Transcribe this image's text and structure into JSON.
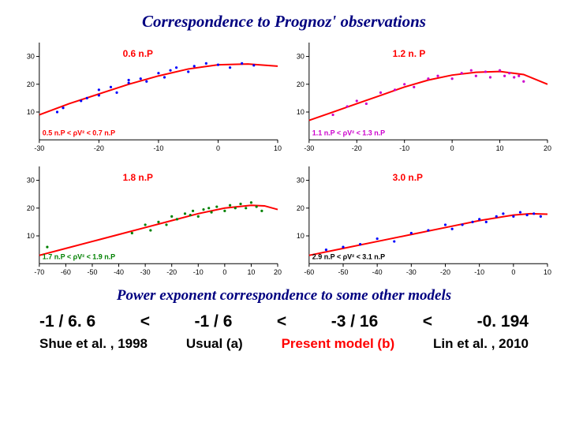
{
  "title": "Correspondence to Prognoz' observations",
  "subtitle": "Power exponent correspondence to some other models",
  "text_color": "#000080",
  "colors": {
    "curve": "#ff0000",
    "axis": "#000000",
    "tick_label": "#000000",
    "grid_bg": "#ffffff",
    "red_label": "#ff0000",
    "panelA_pts": "#0000ff",
    "panelB_pts": "#cc00cc",
    "panelC_pts": "#008000",
    "panelD_pts": "#0000ff"
  },
  "panels": [
    {
      "id": "A",
      "label_main": "0.6 n.P",
      "label_range": "0.5 n.P < ρV² < 0.7 n.P",
      "range_color": "#ff0000",
      "xlim": [
        -30,
        10
      ],
      "ylim": [
        0,
        35
      ],
      "xticks": [
        -30,
        -20,
        -10,
        0,
        10
      ],
      "yticks": [
        10,
        20,
        30
      ],
      "curve": [
        [
          -30,
          9
        ],
        [
          -25,
          13
        ],
        [
          -20,
          16.5
        ],
        [
          -15,
          20
        ],
        [
          -10,
          23
        ],
        [
          -5,
          25.5
        ],
        [
          0,
          27
        ],
        [
          5,
          27.3
        ],
        [
          10,
          26.5
        ]
      ],
      "points": [
        [
          -27,
          10
        ],
        [
          -26,
          11.5
        ],
        [
          -23,
          14
        ],
        [
          -22,
          15
        ],
        [
          -20,
          16
        ],
        [
          -20,
          18
        ],
        [
          -18,
          19
        ],
        [
          -17,
          17
        ],
        [
          -15,
          20.5
        ],
        [
          -15,
          21.5
        ],
        [
          -13,
          22
        ],
        [
          -12,
          21
        ],
        [
          -10,
          24
        ],
        [
          -9,
          22.5
        ],
        [
          -8,
          25
        ],
        [
          -7,
          26
        ],
        [
          -5,
          24.5
        ],
        [
          -4,
          26.5
        ],
        [
          -2,
          27.5
        ],
        [
          0,
          27
        ],
        [
          2,
          26
        ],
        [
          4,
          27.5
        ],
        [
          6,
          26.8
        ]
      ]
    },
    {
      "id": "B",
      "label_main": "1.2 n. P",
      "label_range": "1.1 n.P < ρV² < 1.3 n.P",
      "range_color": "#cc00cc",
      "xlim": [
        -30,
        20
      ],
      "ylim": [
        0,
        35
      ],
      "xticks": [
        -30,
        -20,
        -10,
        0,
        10,
        20
      ],
      "yticks": [
        10,
        20,
        30
      ],
      "curve": [
        [
          -30,
          7
        ],
        [
          -25,
          10
        ],
        [
          -20,
          13
        ],
        [
          -15,
          16
        ],
        [
          -10,
          19
        ],
        [
          -5,
          21.5
        ],
        [
          0,
          23.3
        ],
        [
          5,
          24.3
        ],
        [
          10,
          24.6
        ],
        [
          15,
          23.5
        ],
        [
          20,
          20
        ]
      ],
      "points": [
        [
          -25,
          9
        ],
        [
          -22,
          12
        ],
        [
          -20,
          14
        ],
        [
          -18,
          13
        ],
        [
          -15,
          17
        ],
        [
          -12,
          18
        ],
        [
          -10,
          20
        ],
        [
          -8,
          19
        ],
        [
          -5,
          22
        ],
        [
          -3,
          23
        ],
        [
          0,
          22
        ],
        [
          2,
          24
        ],
        [
          4,
          25
        ],
        [
          5,
          23
        ],
        [
          7,
          24.5
        ],
        [
          8,
          22.5
        ],
        [
          10,
          25
        ],
        [
          11,
          23
        ],
        [
          12,
          24
        ],
        [
          13,
          22.5
        ],
        [
          14,
          23
        ],
        [
          15,
          21
        ]
      ]
    },
    {
      "id": "C",
      "label_main": "1.8 n.P",
      "label_range": "1.7 n.P < ρV² < 1.9 n.P",
      "range_color": "#008000",
      "xlim": [
        -70,
        20
      ],
      "ylim": [
        0,
        35
      ],
      "xticks": [
        -70,
        -60,
        -50,
        -40,
        -30,
        -20,
        -10,
        0,
        10,
        20
      ],
      "yticks": [
        10,
        20,
        30
      ],
      "curve": [
        [
          -70,
          3
        ],
        [
          -60,
          5.5
        ],
        [
          -50,
          8
        ],
        [
          -40,
          10.5
        ],
        [
          -30,
          13
        ],
        [
          -20,
          15.5
        ],
        [
          -10,
          18
        ],
        [
          0,
          20
        ],
        [
          10,
          21
        ],
        [
          15,
          20.8
        ],
        [
          20,
          19.5
        ]
      ],
      "points": [
        [
          -67,
          6
        ],
        [
          -35,
          11
        ],
        [
          -30,
          14
        ],
        [
          -28,
          12
        ],
        [
          -25,
          15
        ],
        [
          -22,
          14
        ],
        [
          -20,
          17
        ],
        [
          -18,
          16
        ],
        [
          -15,
          18
        ],
        [
          -13,
          17.5
        ],
        [
          -12,
          19
        ],
        [
          -10,
          17
        ],
        [
          -8,
          19.5
        ],
        [
          -6,
          20
        ],
        [
          -5,
          18.5
        ],
        [
          -3,
          20.5
        ],
        [
          0,
          19
        ],
        [
          2,
          21
        ],
        [
          4,
          20
        ],
        [
          6,
          21.5
        ],
        [
          8,
          20
        ],
        [
          10,
          22
        ],
        [
          12,
          20.5
        ],
        [
          14,
          19
        ]
      ]
    },
    {
      "id": "D",
      "label_main": "3.0 n.P",
      "label_range": "2.9 n.P < ρV² < 3.1 n.P",
      "range_color": "#000000",
      "xlim": [
        -60,
        10
      ],
      "ylim": [
        0,
        35
      ],
      "xticks": [
        -60,
        -50,
        -40,
        -30,
        -20,
        -10,
        0,
        10
      ],
      "yticks": [
        10,
        20,
        30
      ],
      "curve": [
        [
          -60,
          3
        ],
        [
          -50,
          5.5
        ],
        [
          -40,
          8
        ],
        [
          -30,
          10.5
        ],
        [
          -20,
          13
        ],
        [
          -10,
          15.5
        ],
        [
          0,
          17.5
        ],
        [
          5,
          18
        ],
        [
          10,
          17.8
        ]
      ],
      "points": [
        [
          -55,
          5
        ],
        [
          -50,
          6
        ],
        [
          -45,
          7
        ],
        [
          -40,
          9
        ],
        [
          -35,
          8
        ],
        [
          -30,
          11
        ],
        [
          -25,
          12
        ],
        [
          -20,
          14
        ],
        [
          -18,
          12.5
        ],
        [
          -15,
          14
        ],
        [
          -12,
          15
        ],
        [
          -10,
          16
        ],
        [
          -8,
          15
        ],
        [
          -5,
          17
        ],
        [
          -3,
          18
        ],
        [
          0,
          17
        ],
        [
          2,
          18.5
        ],
        [
          4,
          17.5
        ],
        [
          6,
          18
        ],
        [
          8,
          17
        ]
      ]
    }
  ],
  "exponents": {
    "e1": "-1 / 6. 6",
    "lt1": "<",
    "e2": "-1 / 6",
    "lt2": "<",
    "e3": "-3 / 16",
    "lt3": "<",
    "e4": "-0. 194"
  },
  "labels": {
    "l1": "Shue et al. , 1998",
    "l2": "Usual  (a)",
    "l3": "Present model (b)",
    "l4": "Lin et al. , 2010"
  }
}
